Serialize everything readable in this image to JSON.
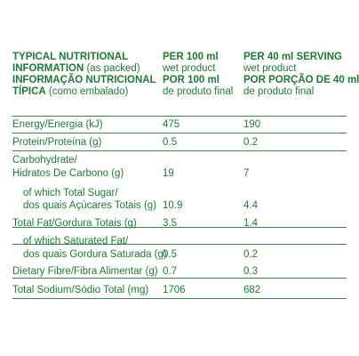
{
  "headers": {
    "col1": {
      "en_title_line1": "TYPICAL NUTRITIONAL",
      "en_title_line2_bold": "INFORMATION",
      "en_title_line2_rest": " (as packed)",
      "pt_title_line1": "INFORMAÇÃO NUTRICIONAL",
      "pt_title_line2_bold": "TÍPICA",
      "pt_title_line2_rest": " (como embalado)"
    },
    "col2": {
      "en_title": "PER 100 ml",
      "en_sub": "wet product",
      "pt_title": "POR 100 ml",
      "pt_sub": "de produto final"
    },
    "col3": {
      "en_title": "PER 40 ml SERVING",
      "en_sub": "wet product",
      "pt_title": "POR PORÇÃO DE 40 ml",
      "pt_sub": "de produto final"
    }
  },
  "rows": [
    {
      "label": [
        "Energy/Energia (kJ)"
      ],
      "per100": "475",
      "serving": "190"
    },
    {
      "label": [
        "Protein/Proteína (g)"
      ],
      "per100": "0.5",
      "serving": "0.2"
    },
    {
      "label": [
        "Carbohydrate/",
        "Hidratos De Carbono (g)"
      ],
      "per100": "19",
      "serving": "7"
    },
    {
      "label": [
        "of which Total Sugar/",
        "dos quais Açúcares Totais (g)"
      ],
      "per100": "10.9",
      "serving": "4.4"
    },
    {
      "label": [
        "Total Fat/Gordura Totais (g)"
      ],
      "per100": "3.5",
      "serving": "1.4"
    },
    {
      "label": [
        "of which Saturated Fat/",
        "dos quais Gordura Saturada (g)"
      ],
      "per100": "0.5",
      "serving": "0.2"
    },
    {
      "label": [
        "Dietary Fibre/Fibra Alimentar (g)"
      ],
      "per100": "0.7",
      "serving": "0.3"
    },
    {
      "label": [
        "Total Sodium/Sódio Total (mg)"
      ],
      "per100": "1706",
      "serving": "682"
    }
  ],
  "colors": {
    "text": "#1e7a35",
    "rule": "#2f8a44"
  }
}
